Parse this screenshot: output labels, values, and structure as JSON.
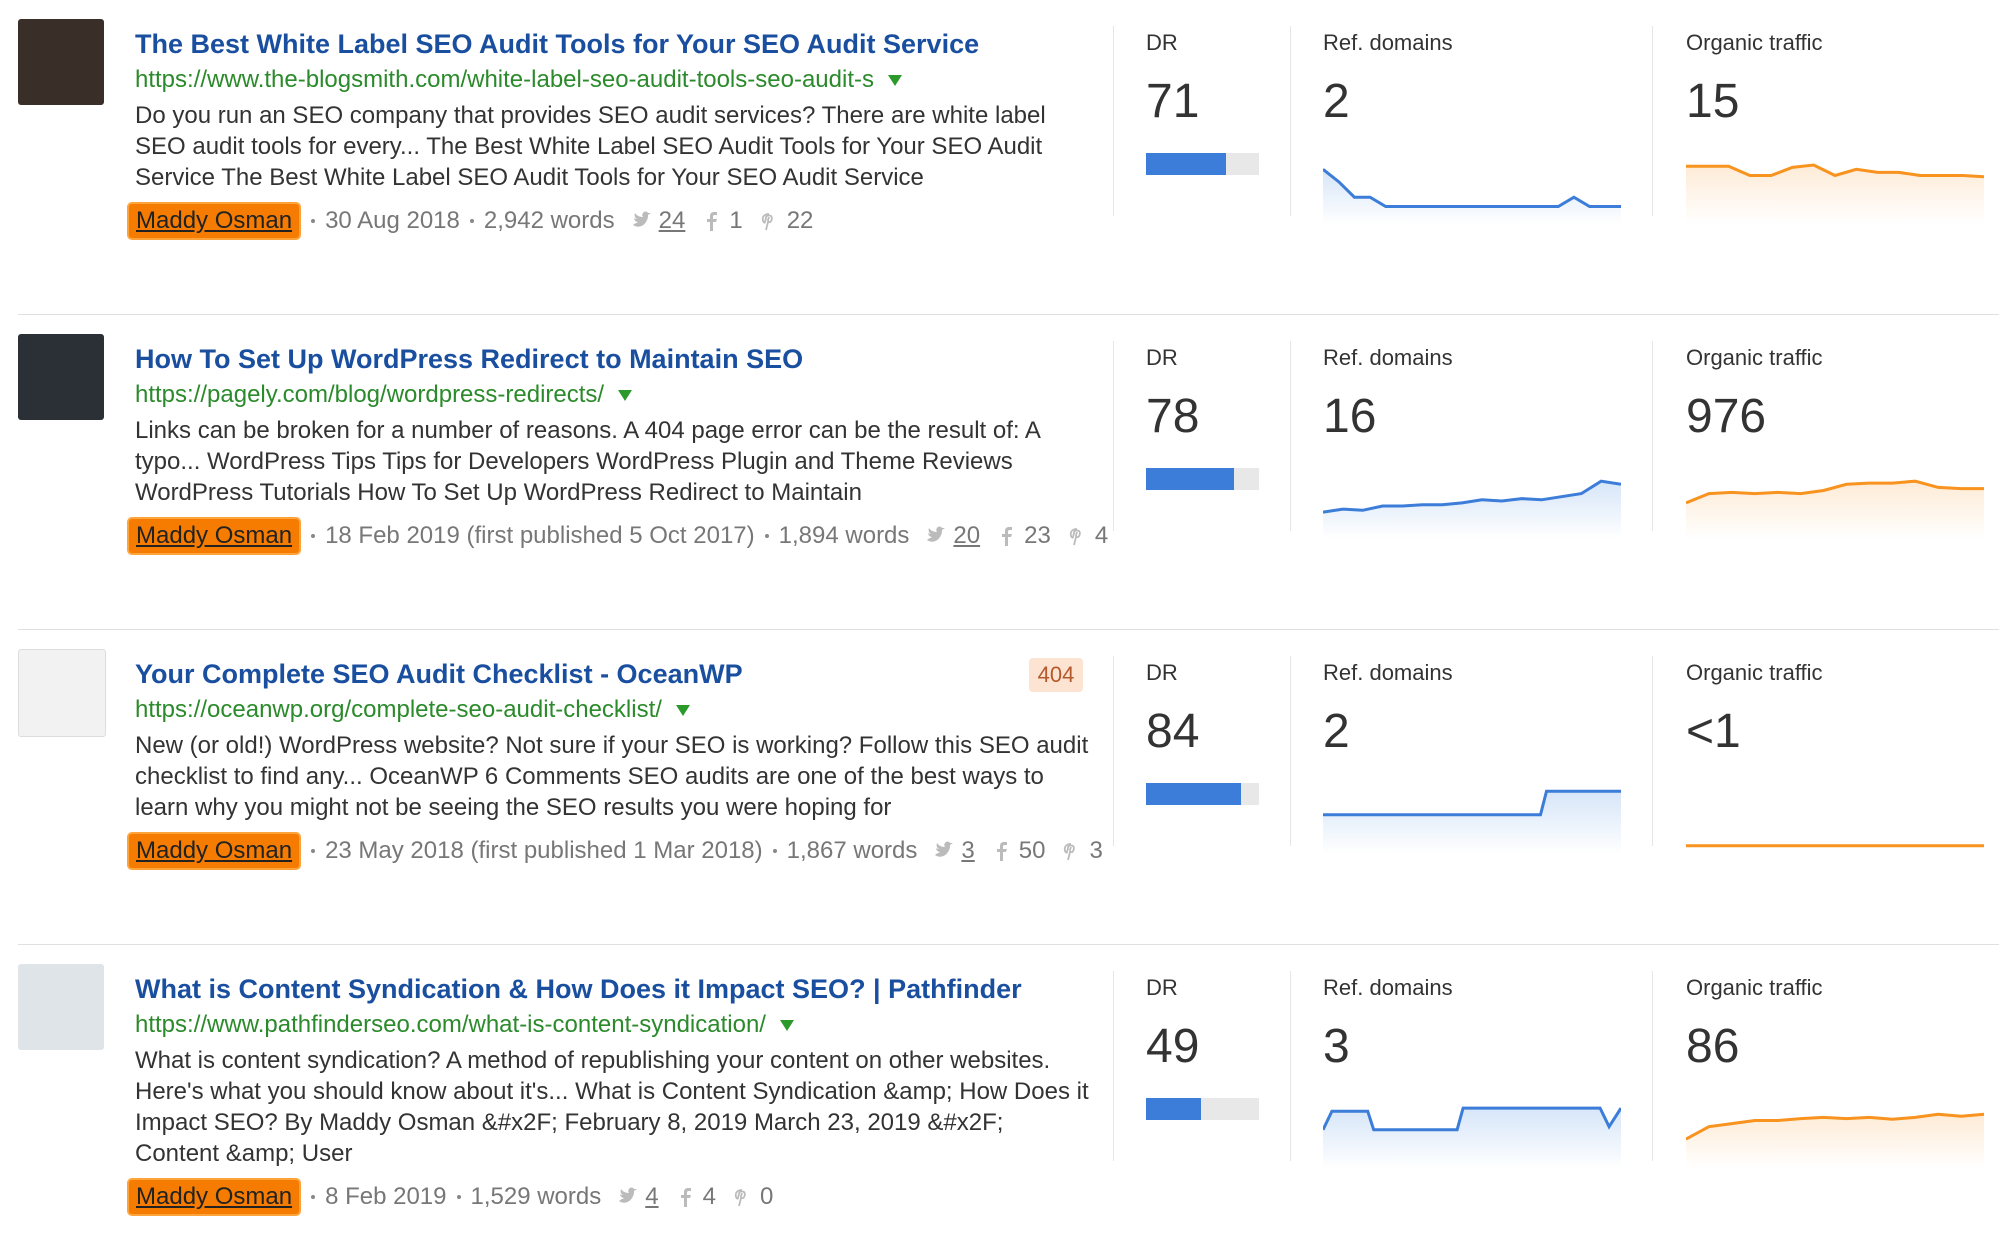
{
  "column_headers": {
    "dr": "DR",
    "ref_domains": "Ref. domains",
    "organic_traffic": "Organic traffic"
  },
  "results": [
    {
      "title": "The Best White Label SEO Audit Tools for Your SEO Audit Service",
      "url": "https://www.the-blogsmith.com/white-label-seo-audit-tools-seo-audit-s",
      "snippet": "Do you run an SEO company that provides SEO audit services? There are white label SEO audit tools for every... The Best White Label SEO Audit Tools for Your SEO Audit Service The Best White Label SEO Audit Tools for Your SEO Audit Service",
      "author": "Maddy Osman",
      "date": "30 Aug 2018",
      "words": "2,942 words",
      "twitter": 24,
      "facebook": 1,
      "pinterest": 22,
      "dr": 71,
      "ref_domains": 2,
      "organic_traffic": 15
    },
    {
      "title": "How To Set Up WordPress Redirect to Maintain SEO",
      "url": "https://pagely.com/blog/wordpress-redirects/",
      "snippet": "Links can be broken for a number of reasons. A 404 page error can be the result of: A typo... WordPress Tips Tips for Developers WordPress Plugin and Theme Reviews WordPress Tutorials How To Set Up WordPress Redirect to Maintain",
      "author": "Maddy Osman",
      "date": "18 Feb 2019 (first published 5 Oct 2017)",
      "words": "1,894 words",
      "twitter": 20,
      "facebook": 23,
      "pinterest": 4,
      "dr": 78,
      "ref_domains": 16,
      "organic_traffic": 976
    },
    {
      "title": "Your Complete SEO Audit Checklist - OceanWP",
      "badge": "404",
      "url": "https://oceanwp.org/complete-seo-audit-checklist/",
      "snippet": "New (or old!) WordPress website? Not sure if your SEO is working? Follow this SEO audit checklist to find any... OceanWP 6 Comments SEO audits are one of the best ways to learn why you might not be seeing the SEO results you were hoping for",
      "author": "Maddy Osman",
      "date": "23 May 2018 (first published 1 Mar 2018)",
      "words": "1,867 words",
      "twitter": 3,
      "facebook": 50,
      "pinterest": 3,
      "dr": 84,
      "ref_domains": 2,
      "organic_traffic": "<1"
    },
    {
      "title": "What is Content Syndication & How Does it Impact SEO? | Pathfinder",
      "url": "https://www.pathfinderseo.com/what-is-content-syndication/",
      "snippet": "What is content syndication? A method of republishing your content on other websites. Here's what you should know about it's... What is Content Syndication &amp; How Does it Impact SEO? By Maddy Osman &#x2F; February 8, 2019 March 23, 2019 &#x2F; Content &amp; User",
      "author": "Maddy Osman",
      "date": "8 Feb 2019",
      "words": "1,529 words",
      "twitter": 4,
      "facebook": 4,
      "pinterest": 0,
      "dr": 49,
      "ref_domains": 3,
      "organic_traffic": 86
    }
  ]
}
